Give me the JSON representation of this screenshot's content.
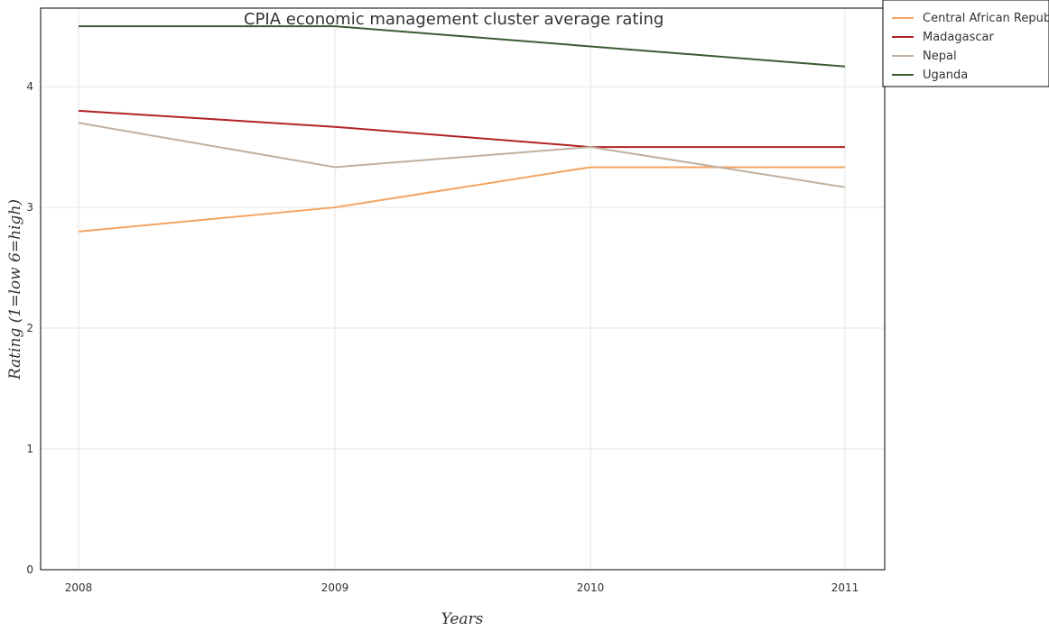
{
  "chart_data": {
    "type": "line",
    "title": "CPIA economic management cluster average rating",
    "xlabel": "Years",
    "ylabel": "Rating (1=low 6=high)",
    "categories": [
      "2008",
      "2009",
      "2010",
      "2011"
    ],
    "ylim": [
      0,
      4.65
    ],
    "yticks": [
      0,
      1,
      2,
      3,
      4
    ],
    "grid": true,
    "legend_position": "top-right",
    "series": [
      {
        "name": "Central African Republic",
        "color": "#f4a460",
        "values": [
          2.8,
          3.0,
          3.333,
          3.333
        ]
      },
      {
        "name": "Madagascar",
        "color": "#b22222",
        "values": [
          3.8,
          3.667,
          3.5,
          3.5
        ]
      },
      {
        "name": "Nepal",
        "color": "#c0b0a0",
        "values": [
          3.7,
          3.333,
          3.5,
          3.167
        ]
      },
      {
        "name": "Uganda",
        "color": "#3c5a32",
        "values": [
          4.5,
          4.5,
          4.333,
          4.167
        ]
      }
    ]
  }
}
